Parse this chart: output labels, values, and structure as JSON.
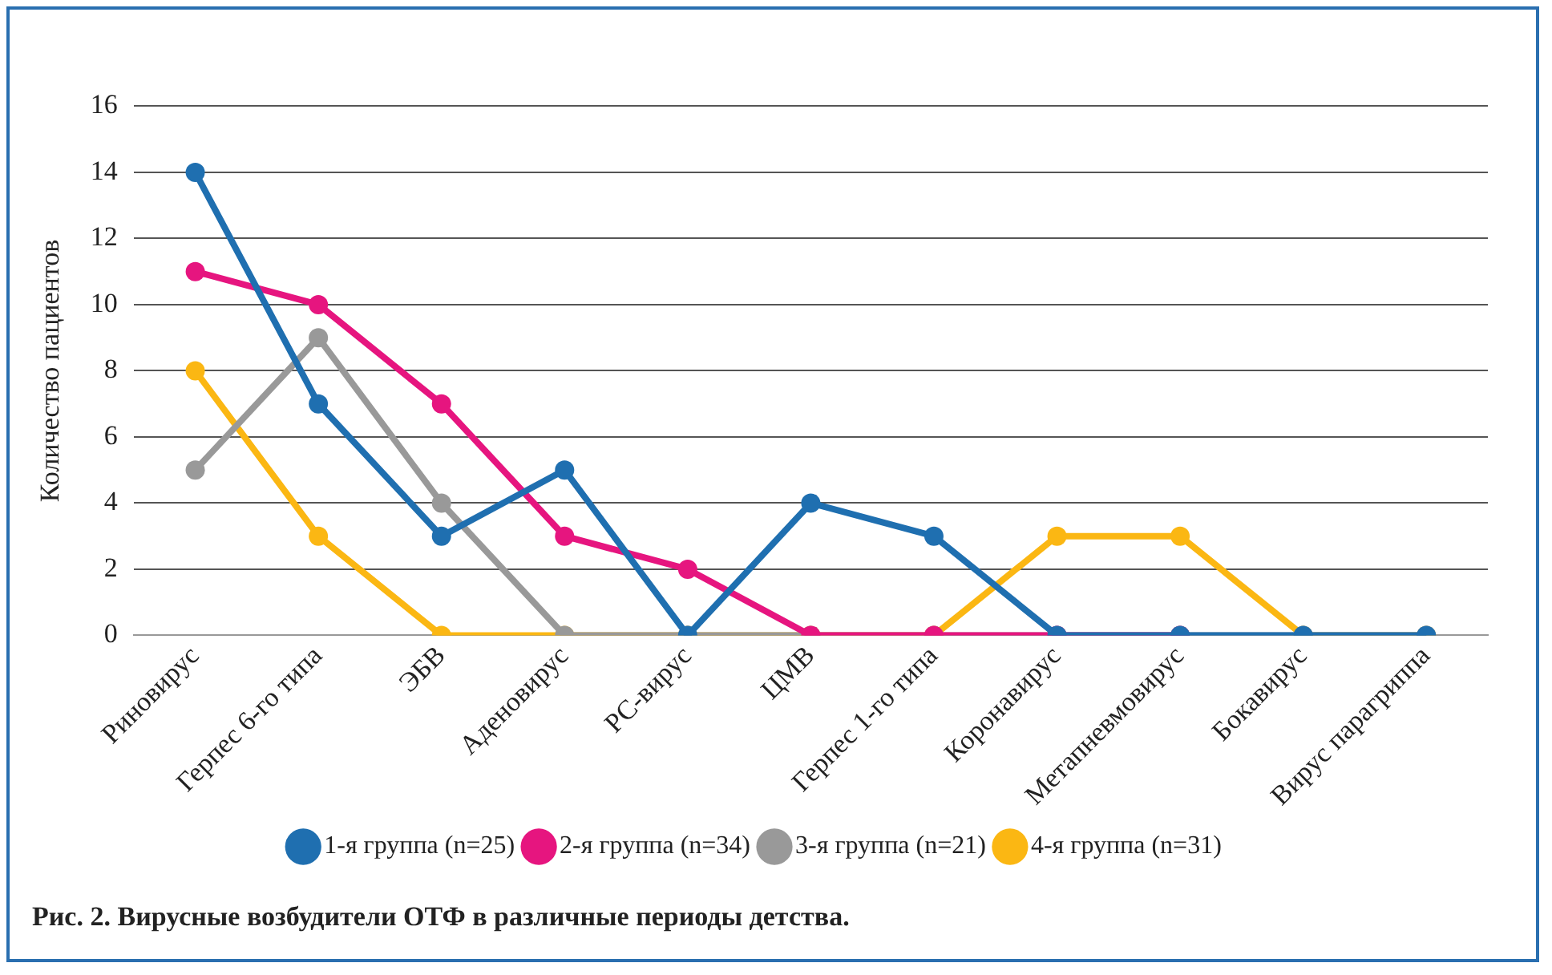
{
  "chart_data": {
    "type": "line",
    "ylabel": "Количество пациентов",
    "categories": [
      "Риновирус",
      "Герпес 6-го типа",
      "ЭБВ",
      "Аденовирус",
      "РС-вирус",
      "ЦМВ",
      "Герпес 1-го типа",
      "Коронавирус",
      "Метапневмовирус",
      "Бокавирус",
      "Вирус парагриппа"
    ],
    "series": [
      {
        "name": "1-я группа (n=25)",
        "color": "#1f6fb0",
        "values": [
          14,
          7,
          3,
          5,
          0,
          4,
          3,
          0,
          0,
          0,
          0
        ]
      },
      {
        "name": "2-я группа (n=34)",
        "color": "#e6157f",
        "values": [
          11,
          10,
          7,
          3,
          2,
          0,
          0,
          0,
          0,
          null,
          null
        ]
      },
      {
        "name": "3-я группа (n=21)",
        "color": "#999999",
        "values": [
          5,
          9,
          4,
          0,
          0,
          0,
          0,
          0,
          0,
          0,
          0
        ]
      },
      {
        "name": "4-я группа (n=31)",
        "color": "#fbb713",
        "values": [
          8,
          3,
          0,
          0,
          0,
          0,
          0,
          3,
          3,
          0,
          0
        ]
      }
    ],
    "ylim": [
      0,
      16
    ],
    "yticks": [
      0,
      2,
      4,
      6,
      8,
      10,
      12,
      14,
      16
    ],
    "grid": "y",
    "legend": "bottom",
    "marker": "circle",
    "line_style": "solid",
    "annotations": [
      "Рис. 2. Вирусные возбудители ОТФ в различные периоды детства."
    ]
  }
}
